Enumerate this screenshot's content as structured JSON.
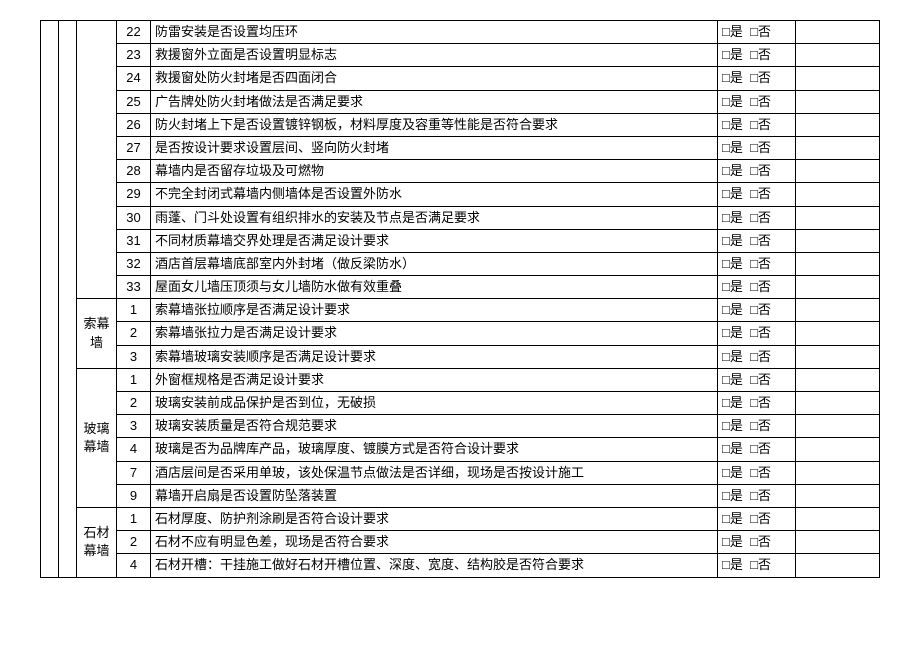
{
  "checkbox_label_yes": "□是",
  "checkbox_label_no": "□否",
  "sections": [
    {
      "category": "",
      "rows": [
        {
          "num": "22",
          "text": "防雷安装是否设置均压环"
        },
        {
          "num": "23",
          "text": "救援窗外立面是否设置明显标志"
        },
        {
          "num": "24",
          "text": "救援窗处防火封堵是否四面闭合"
        },
        {
          "num": "25",
          "text": "广告牌处防火封堵做法是否满足要求"
        },
        {
          "num": "26",
          "text": "防火封堵上下是否设置镀锌钢板，材料厚度及容重等性能是否符合要求"
        },
        {
          "num": "27",
          "text": "是否按设计要求设置层间、竖向防火封堵"
        },
        {
          "num": "28",
          "text": "幕墙内是否留存垃圾及可燃物"
        },
        {
          "num": "29",
          "text": "不完全封闭式幕墙内侧墙体是否设置外防水"
        },
        {
          "num": "30",
          "text": "雨蓬、门斗处设置有组织排水的安装及节点是否满足要求"
        },
        {
          "num": "31",
          "text": "不同材质幕墙交界处理是否满足设计要求"
        },
        {
          "num": "32",
          "text": "酒店首层幕墙底部室内外封堵（做反梁防水）"
        },
        {
          "num": "33",
          "text": "屋面女儿墙压顶须与女儿墙防水做有效重叠"
        }
      ]
    },
    {
      "category": "索幕墙",
      "rows": [
        {
          "num": "1",
          "text": "索幕墙张拉顺序是否满足设计要求"
        },
        {
          "num": "2",
          "text": "索幕墙张拉力是否满足设计要求"
        },
        {
          "num": "3",
          "text": "索幕墙玻璃安装顺序是否满足设计要求"
        }
      ]
    },
    {
      "category": "玻璃幕墙",
      "rows": [
        {
          "num": "1",
          "text": "外窗框规格是否满足设计要求"
        },
        {
          "num": "2",
          "text": "玻璃安装前成品保护是否到位，无破损"
        },
        {
          "num": "3",
          "text": "玻璃安装质量是否符合规范要求"
        },
        {
          "num": "4",
          "text": "玻璃是否为品牌库产品，玻璃厚度、镀膜方式是否符合设计要求"
        },
        {
          "num": "7",
          "text": "酒店层间是否采用单玻，该处保温节点做法是否详细，现场是否按设计施工"
        },
        {
          "num": "9",
          "text": "幕墙开启扇是否设置防坠落装置"
        }
      ]
    },
    {
      "category": "石材幕墙",
      "rows": [
        {
          "num": "1",
          "text": "石材厚度、防护剂涂刷是否符合设计要求"
        },
        {
          "num": "2",
          "text": "石材不应有明显色差，现场是否符合要求"
        },
        {
          "num": "4",
          "text": "石材开槽：干挂施工做好石材开槽位置、深度、宽度、结构胶是否符合要求"
        }
      ]
    }
  ]
}
